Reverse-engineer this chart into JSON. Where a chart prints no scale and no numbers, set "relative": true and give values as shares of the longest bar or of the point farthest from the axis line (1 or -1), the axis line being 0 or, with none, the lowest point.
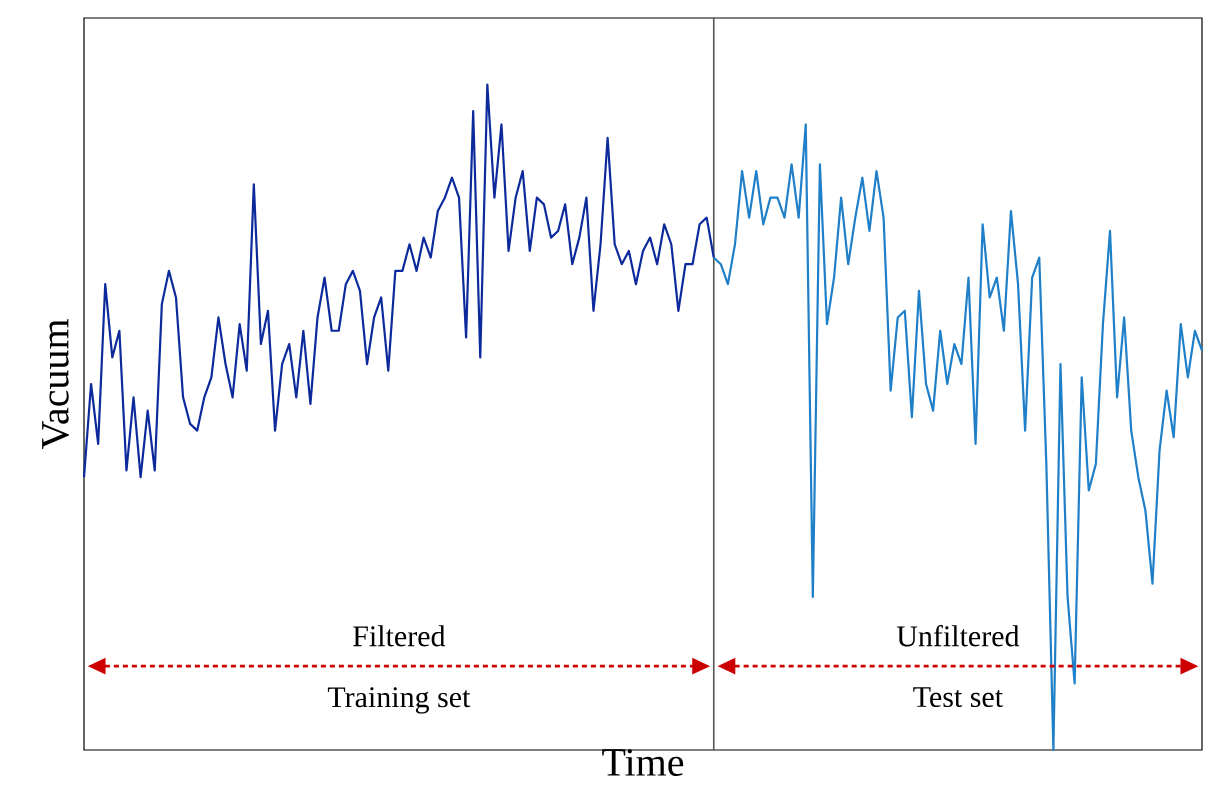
{
  "chart_data": {
    "type": "line",
    "relative": true,
    "xlabel": "Time",
    "ylabel": "Vacuum",
    "categories": [
      null,
      null,
      null,
      null,
      null,
      null,
      null,
      null,
      null,
      null,
      null,
      null,
      null,
      null,
      null,
      null,
      null,
      null,
      null,
      null,
      null,
      null,
      null,
      null,
      null,
      null,
      null,
      null,
      null,
      null,
      null,
      null,
      null,
      null,
      null,
      null,
      null,
      null,
      null,
      null,
      null,
      null,
      null,
      null,
      null,
      null,
      null,
      null,
      null,
      null,
      null,
      null,
      null,
      null,
      null,
      null,
      null,
      null,
      null,
      null,
      null,
      null,
      null,
      null,
      null,
      null,
      null,
      null,
      null,
      null,
      null,
      null,
      null,
      null,
      null,
      null,
      null,
      null,
      null,
      null,
      null,
      null,
      null,
      null,
      null,
      null,
      null,
      null,
      null,
      null,
      null,
      null,
      null,
      null,
      null,
      null,
      null,
      null,
      null,
      null,
      null,
      null,
      null,
      null,
      null,
      null,
      null,
      null,
      null,
      null,
      null,
      null,
      null,
      null,
      null,
      null,
      null,
      null,
      null,
      null,
      null,
      null,
      null,
      null,
      null,
      null,
      null,
      null,
      null,
      null,
      null,
      null,
      null,
      null,
      null,
      null,
      null,
      null,
      null,
      null,
      null,
      null,
      null,
      null,
      null,
      null,
      null,
      null,
      null,
      null,
      null,
      null,
      null,
      null,
      null,
      null,
      null,
      null,
      null
    ],
    "annotations": [
      "Filtered",
      "Training set",
      "Unfiltered",
      "Test set"
    ],
    "series": [
      {
        "color": "#0d2a9c",
        "values": [
          0.41,
          0.55,
          0.46,
          0.7,
          0.59,
          0.63,
          0.42,
          0.53,
          0.41,
          0.51,
          0.42,
          0.67,
          0.72,
          0.68,
          0.53,
          0.49,
          0.48,
          0.53,
          0.56,
          0.65,
          0.58,
          0.53,
          0.64,
          0.57,
          0.85,
          0.61,
          0.66,
          0.48,
          0.58,
          0.61,
          0.53,
          0.63,
          0.52,
          0.65,
          0.71,
          0.63,
          0.63,
          0.7,
          0.72,
          0.69,
          0.58,
          0.65,
          0.68,
          0.57,
          0.72,
          0.72,
          0.76,
          0.72,
          0.77,
          0.74,
          0.81,
          0.83,
          0.86,
          0.83,
          0.62,
          0.96,
          0.59,
          1.0,
          0.83,
          0.94,
          0.75,
          0.83,
          0.87,
          0.75,
          0.83,
          0.82,
          0.77,
          0.78,
          0.82,
          0.73,
          0.77,
          0.83,
          0.66,
          0.76,
          0.92,
          0.76,
          0.73,
          0.75,
          0.7,
          0.75,
          0.77,
          0.73,
          0.79,
          0.76,
          0.66,
          0.73,
          0.73,
          0.79,
          0.8,
          0.74,
          null,
          null,
          null,
          null,
          null,
          null,
          null,
          null,
          null,
          null,
          null,
          null,
          null,
          null,
          null,
          null,
          null,
          null,
          null,
          null,
          null,
          null,
          null,
          null,
          null,
          null,
          null,
          null,
          null,
          null,
          null,
          null,
          null,
          null,
          null,
          null,
          null,
          null,
          null,
          null,
          null,
          null,
          null,
          null,
          null,
          null,
          null,
          null,
          null,
          null,
          null,
          null,
          null,
          null,
          null,
          null,
          null,
          null,
          null,
          null,
          null,
          null,
          null,
          null,
          null,
          null,
          null,
          null,
          null
        ]
      },
      {
        "color": "#1f7fc8",
        "values": [
          null,
          null,
          null,
          null,
          null,
          null,
          null,
          null,
          null,
          null,
          null,
          null,
          null,
          null,
          null,
          null,
          null,
          null,
          null,
          null,
          null,
          null,
          null,
          null,
          null,
          null,
          null,
          null,
          null,
          null,
          null,
          null,
          null,
          null,
          null,
          null,
          null,
          null,
          null,
          null,
          null,
          null,
          null,
          null,
          null,
          null,
          null,
          null,
          null,
          null,
          null,
          null,
          null,
          null,
          null,
          null,
          null,
          null,
          null,
          null,
          null,
          null,
          null,
          null,
          null,
          null,
          null,
          null,
          null,
          null,
          null,
          null,
          null,
          null,
          null,
          null,
          null,
          null,
          null,
          null,
          null,
          null,
          null,
          null,
          null,
          null,
          null,
          null,
          null,
          0.74,
          0.73,
          0.7,
          0.76,
          0.87,
          0.8,
          0.87,
          0.79,
          0.83,
          0.83,
          0.8,
          0.88,
          0.8,
          0.94,
          0.23,
          0.88,
          0.64,
          0.71,
          0.83,
          0.73,
          0.8,
          0.86,
          0.78,
          0.87,
          0.8,
          0.54,
          0.65,
          0.66,
          0.5,
          0.69,
          0.55,
          0.51,
          0.63,
          0.55,
          0.61,
          0.58,
          0.71,
          0.46,
          0.79,
          0.68,
          0.71,
          0.63,
          0.81,
          0.7,
          0.48,
          0.71,
          0.74,
          0.43,
          0.0,
          0.58,
          0.23,
          0.1,
          0.56,
          0.39,
          0.43,
          0.64,
          0.78,
          0.53,
          0.65,
          0.48,
          0.41,
          0.36,
          0.25,
          0.45,
          0.54,
          0.47,
          0.64,
          0.56,
          0.63,
          0.6
        ]
      }
    ]
  }
}
